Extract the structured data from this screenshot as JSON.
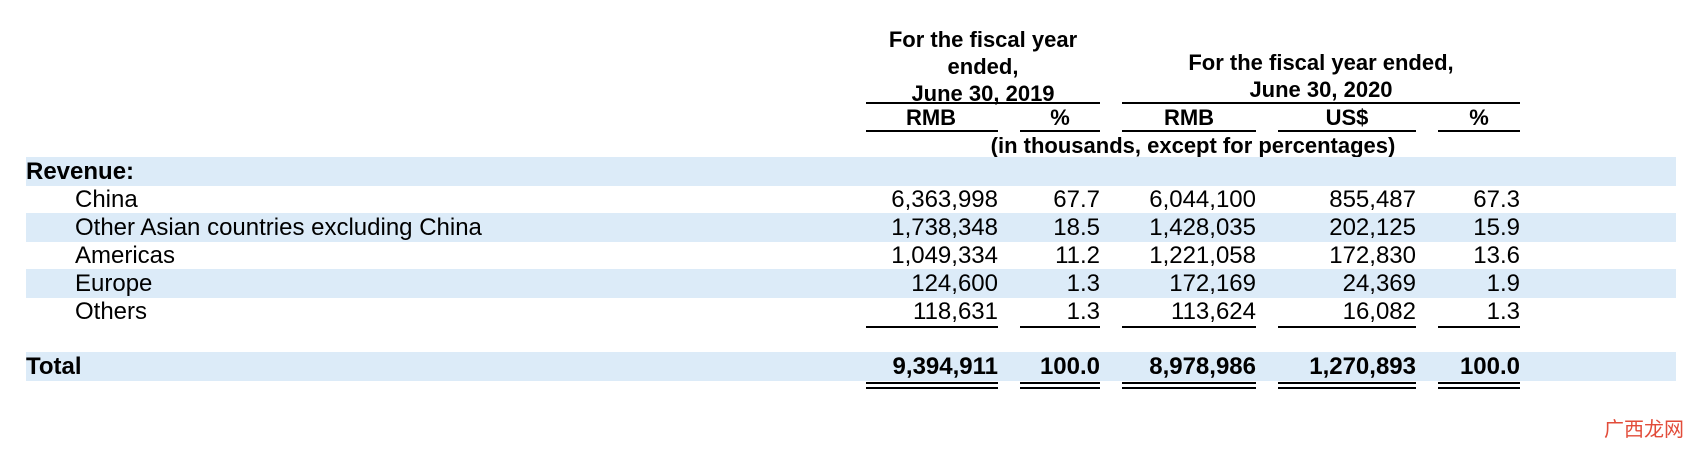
{
  "header": {
    "fy2019": "For the fiscal year\nended,\nJune 30, 2019",
    "fy2020": "For the fiscal year ended,\nJune 30, 2020",
    "col_rmb_2019": "RMB",
    "col_pct_2019": "%",
    "col_rmb_2020": "RMB",
    "col_usd_2020": "US$",
    "col_pct_2020": "%",
    "units_note": "(in thousands, except for percentages)"
  },
  "section_label": "Revenue:",
  "rows": [
    {
      "label": "China",
      "rmb2019": "6,363,998",
      "pct2019": "67.7",
      "rmb2020": "6,044,100",
      "usd2020": "855,487",
      "pct2020": "67.3"
    },
    {
      "label": "Other Asian countries excluding China",
      "rmb2019": "1,738,348",
      "pct2019": "18.5",
      "rmb2020": "1,428,035",
      "usd2020": "202,125",
      "pct2020": "15.9"
    },
    {
      "label": "Americas",
      "rmb2019": "1,049,334",
      "pct2019": "11.2",
      "rmb2020": "1,221,058",
      "usd2020": "172,830",
      "pct2020": "13.6"
    },
    {
      "label": "Europe",
      "rmb2019": "124,600",
      "pct2019": "1.3",
      "rmb2020": "172,169",
      "usd2020": "24,369",
      "pct2020": "1.9"
    },
    {
      "label": "Others",
      "rmb2019": "118,631",
      "pct2019": "1.3",
      "rmb2020": "113,624",
      "usd2020": "16,082",
      "pct2020": "1.3"
    }
  ],
  "total": {
    "label": "Total",
    "rmb2019": "9,394,911",
    "pct2019": "100.0",
    "rmb2020": "8,978,986",
    "usd2020": "1,270,893",
    "pct2020": "100.0"
  },
  "watermark": "广西龙网",
  "colors": {
    "band": "#dcebf8",
    "watermark": "#e24c3a"
  }
}
